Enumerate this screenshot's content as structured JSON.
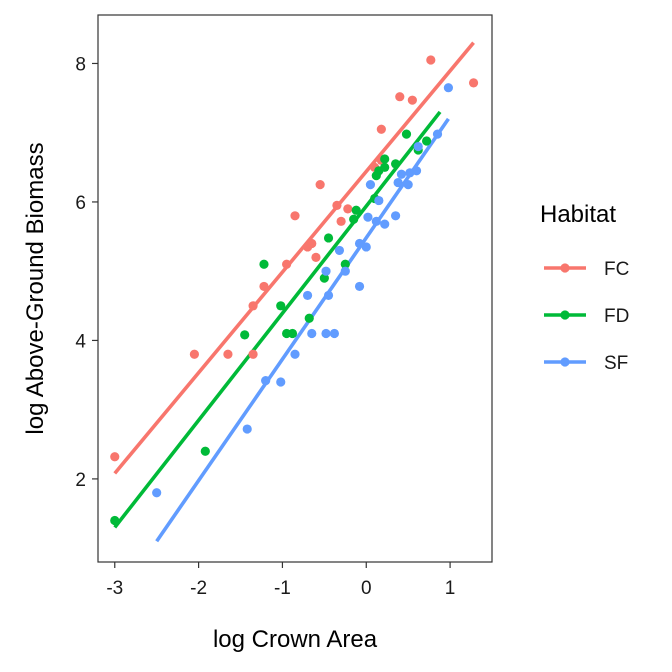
{
  "chart_data": {
    "type": "scatter",
    "title": "",
    "xlabel": "log Crown Area",
    "ylabel": "log Above-Ground Biomass",
    "xlim": [
      -3.2,
      1.5
    ],
    "ylim": [
      0.8,
      8.7
    ],
    "x_ticks": [
      -3,
      -2,
      -1,
      0,
      1
    ],
    "y_ticks": [
      2,
      4,
      6,
      8
    ],
    "grid": false,
    "legend": {
      "title": "Habitat",
      "position": "right"
    },
    "series": [
      {
        "name": "FC",
        "color": "#F8766D",
        "points": [
          [
            -3.0,
            2.32
          ],
          [
            -2.05,
            3.8
          ],
          [
            -1.65,
            3.8
          ],
          [
            -1.35,
            3.8
          ],
          [
            -1.35,
            4.5
          ],
          [
            -1.22,
            4.78
          ],
          [
            -0.95,
            5.1
          ],
          [
            -0.85,
            5.8
          ],
          [
            -0.7,
            5.35
          ],
          [
            -0.65,
            5.4
          ],
          [
            -0.6,
            5.2
          ],
          [
            -0.55,
            6.25
          ],
          [
            -0.35,
            5.95
          ],
          [
            -0.3,
            5.72
          ],
          [
            -0.22,
            5.9
          ],
          [
            0.1,
            6.5
          ],
          [
            0.18,
            6.6
          ],
          [
            0.18,
            7.05
          ],
          [
            0.4,
            7.52
          ],
          [
            0.55,
            7.47
          ],
          [
            0.77,
            8.05
          ],
          [
            1.28,
            7.72
          ]
        ],
        "fit": [
          [
            -3.0,
            2.08
          ],
          [
            1.28,
            8.3
          ]
        ]
      },
      {
        "name": "FD",
        "color": "#00BA38",
        "points": [
          [
            -3.0,
            1.4
          ],
          [
            -1.92,
            2.4
          ],
          [
            -1.45,
            4.08
          ],
          [
            -1.22,
            5.1
          ],
          [
            -1.02,
            4.5
          ],
          [
            -0.95,
            4.1
          ],
          [
            -0.88,
            4.1
          ],
          [
            -0.68,
            4.32
          ],
          [
            -0.5,
            4.9
          ],
          [
            -0.45,
            5.48
          ],
          [
            -0.25,
            5.1
          ],
          [
            -0.15,
            5.75
          ],
          [
            -0.12,
            5.88
          ],
          [
            0.1,
            6.05
          ],
          [
            0.12,
            6.38
          ],
          [
            0.15,
            6.45
          ],
          [
            0.22,
            6.5
          ],
          [
            0.22,
            6.62
          ],
          [
            0.35,
            6.55
          ],
          [
            0.48,
            6.98
          ],
          [
            0.62,
            6.75
          ],
          [
            0.72,
            6.88
          ]
        ],
        "fit": [
          [
            -3.0,
            1.3
          ],
          [
            0.88,
            7.3
          ]
        ]
      },
      {
        "name": "SF",
        "color": "#619CFF",
        "points": [
          [
            -2.5,
            1.8
          ],
          [
            -1.42,
            2.72
          ],
          [
            -1.2,
            3.42
          ],
          [
            -1.02,
            3.4
          ],
          [
            -0.85,
            3.8
          ],
          [
            -0.7,
            4.65
          ],
          [
            -0.65,
            4.1
          ],
          [
            -0.48,
            4.1
          ],
          [
            -0.48,
            5.0
          ],
          [
            -0.45,
            4.65
          ],
          [
            -0.38,
            4.1
          ],
          [
            -0.32,
            5.3
          ],
          [
            -0.25,
            5.0
          ],
          [
            -0.08,
            4.78
          ],
          [
            -0.08,
            5.4
          ],
          [
            0.0,
            5.35
          ],
          [
            0.02,
            5.78
          ],
          [
            0.05,
            6.25
          ],
          [
            0.12,
            5.72
          ],
          [
            0.15,
            6.02
          ],
          [
            0.22,
            5.68
          ],
          [
            0.35,
            5.8
          ],
          [
            0.38,
            6.28
          ],
          [
            0.42,
            6.4
          ],
          [
            0.5,
            6.25
          ],
          [
            0.52,
            6.42
          ],
          [
            0.6,
            6.45
          ],
          [
            0.62,
            6.8
          ],
          [
            0.85,
            6.98
          ],
          [
            0.98,
            7.65
          ]
        ],
        "fit": [
          [
            -2.5,
            1.1
          ],
          [
            0.98,
            7.2
          ]
        ]
      }
    ]
  }
}
